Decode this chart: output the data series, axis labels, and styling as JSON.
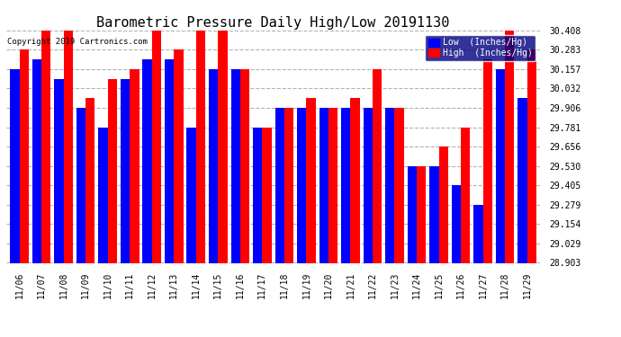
{
  "title": "Barometric Pressure Daily High/Low 20191130",
  "copyright": "Copyright 2019 Cartronics.com",
  "legend_low": "Low  (Inches/Hg)",
  "legend_high": "High  (Inches/Hg)",
  "dates": [
    "11/06",
    "11/07",
    "11/08",
    "11/09",
    "11/10",
    "11/11",
    "11/12",
    "11/13",
    "11/14",
    "11/15",
    "11/16",
    "11/17",
    "11/18",
    "11/19",
    "11/20",
    "11/21",
    "11/22",
    "11/23",
    "11/24",
    "11/25",
    "11/26",
    "11/27",
    "11/28",
    "11/29"
  ],
  "low_values": [
    30.157,
    30.22,
    30.095,
    29.906,
    29.781,
    30.095,
    30.22,
    30.22,
    29.781,
    30.157,
    30.157,
    29.781,
    29.906,
    29.906,
    29.906,
    29.906,
    29.906,
    29.906,
    29.53,
    29.53,
    29.405,
    29.279,
    30.157,
    29.97
  ],
  "high_values": [
    30.283,
    30.408,
    30.408,
    29.97,
    30.095,
    30.157,
    30.408,
    30.283,
    30.408,
    30.408,
    30.157,
    29.781,
    29.906,
    29.97,
    29.906,
    29.97,
    30.157,
    29.906,
    29.53,
    29.656,
    29.781,
    30.22,
    30.408,
    30.283
  ],
  "ylim_min": 28.903,
  "ylim_max": 30.408,
  "yticks": [
    28.903,
    29.029,
    29.154,
    29.279,
    29.405,
    29.53,
    29.656,
    29.781,
    29.906,
    30.032,
    30.157,
    30.283,
    30.408
  ],
  "low_color": "#0000FF",
  "high_color": "#FF0000",
  "bg_color": "#FFFFFF",
  "grid_color": "#AAAAAA",
  "title_fontsize": 11,
  "bar_width": 0.42
}
